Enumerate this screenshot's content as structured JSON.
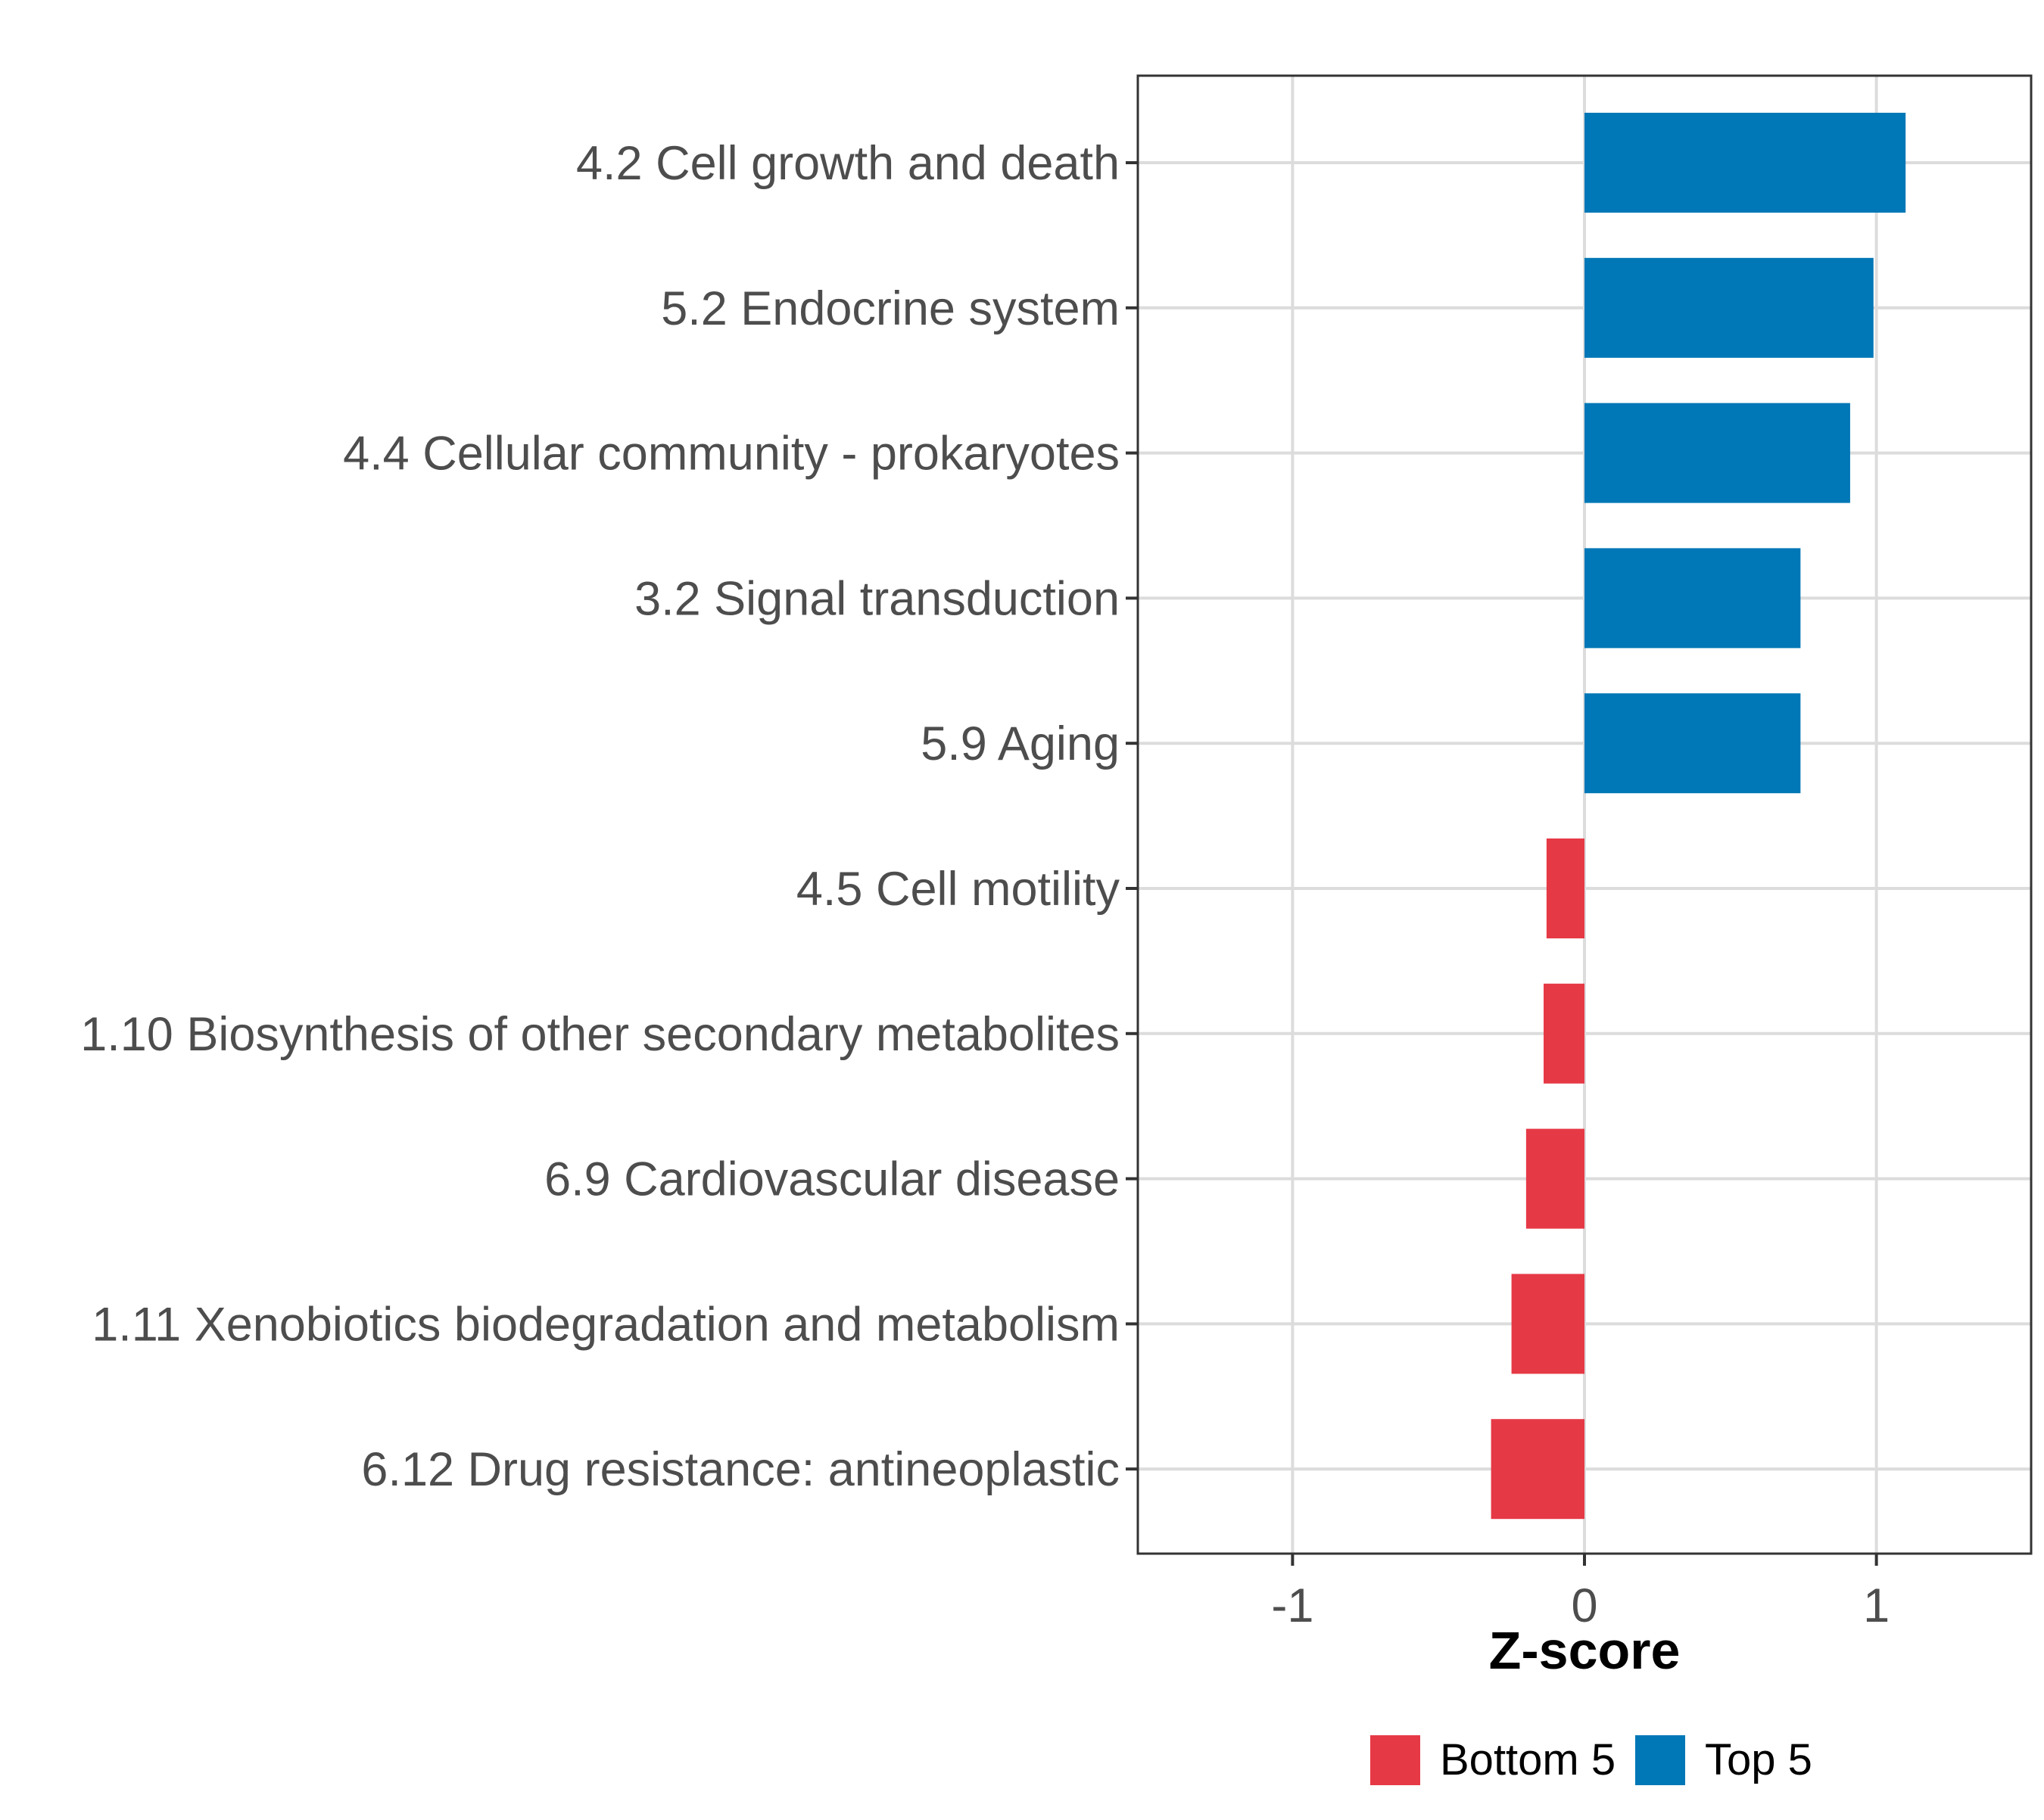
{
  "chart_data": {
    "type": "bar",
    "orientation": "horizontal",
    "categories": [
      "4.2 Cell growth and death",
      "5.2 Endocrine system",
      "4.4 Cellular community - prokaryotes",
      "3.2 Signal transduction",
      "5.9 Aging",
      "4.5 Cell motility",
      "1.10 Biosynthesis of other secondary metabolites",
      "6.9 Cardiovascular disease",
      "1.11 Xenobiotics biodegradation and metabolism",
      "6.12 Drug resistance: antineoplastic"
    ],
    "values": [
      1.1,
      0.99,
      0.91,
      0.74,
      0.74,
      -0.13,
      -0.14,
      -0.2,
      -0.25,
      -0.32
    ],
    "groups": [
      "Top 5",
      "Top 5",
      "Top 5",
      "Top 5",
      "Top 5",
      "Bottom 5",
      "Bottom 5",
      "Bottom 5",
      "Bottom 5",
      "Bottom 5"
    ],
    "xlabel": "Z-score",
    "ylabel": "",
    "xlim": [
      -1.53,
      1.53
    ],
    "xticks": [
      -1,
      0,
      1
    ],
    "xtick_labels": [
      "-1",
      "0",
      "1"
    ],
    "grid": true,
    "legend": {
      "position": "bottom",
      "entries": [
        {
          "label": "Bottom 5",
          "color": "#e63946"
        },
        {
          "label": "Top 5",
          "color": "#0077b6"
        }
      ]
    }
  }
}
